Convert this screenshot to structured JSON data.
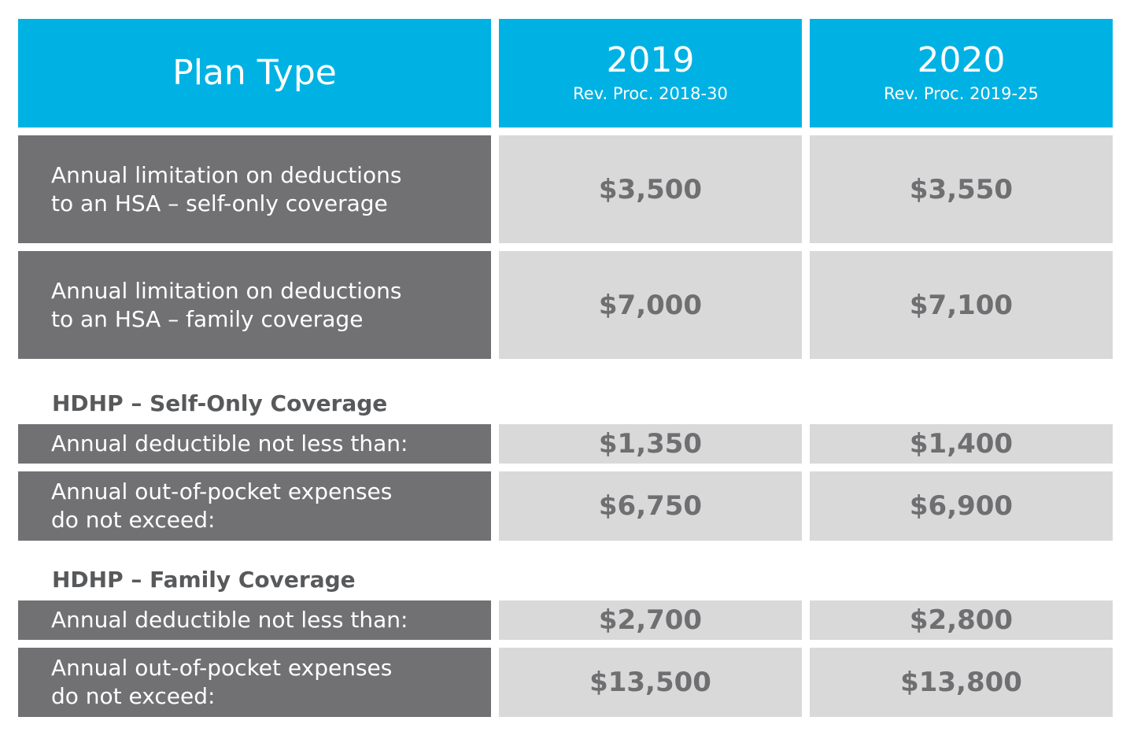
{
  "header": {
    "plan_type": "Plan Type",
    "col1_year": "2019",
    "col1_ref": "Rev. Proc. 2018-30",
    "col2_year": "2020",
    "col2_ref": "Rev. Proc. 2019-25"
  },
  "rows": [
    {
      "label": "Annual limitation on deductions\nto an HSA – self-only coverage",
      "v2019": "$3,500",
      "v2020": "$3,550"
    },
    {
      "label": "Annual limitation on deductions\nto an HSA – family coverage",
      "v2019": "$7,000",
      "v2020": "$7,100"
    }
  ],
  "sections": [
    {
      "title": "HDHP – Self-Only Coverage",
      "rows": [
        {
          "label": "Annual deductible not less than:",
          "v2019": "$1,350",
          "v2020": "$1,400"
        },
        {
          "label": "Annual out-of-pocket expenses\ndo not exceed:",
          "v2019": "$6,750",
          "v2020": "$6,900"
        }
      ]
    },
    {
      "title": "HDHP – Family Coverage",
      "rows": [
        {
          "label": "Annual deductible not less than:",
          "v2019": "$2,700",
          "v2020": "$2,800"
        },
        {
          "label": "Annual out-of-pocket expenses\ndo not exceed:",
          "v2019": "$13,500",
          "v2020": "$13,800"
        }
      ]
    }
  ],
  "colors": {
    "header_bg": "#00b2e3",
    "label_bg": "#717174",
    "value_bg": "#d9d9d9",
    "value_text": "#6f6f72",
    "section_text": "#58595b"
  }
}
